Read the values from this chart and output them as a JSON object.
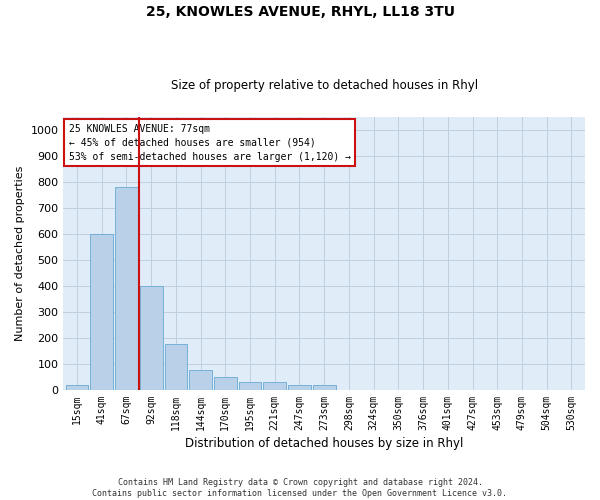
{
  "title1": "25, KNOWLES AVENUE, RHYL, LL18 3TU",
  "title2": "Size of property relative to detached houses in Rhyl",
  "xlabel": "Distribution of detached houses by size in Rhyl",
  "ylabel": "Number of detached properties",
  "footnote": "Contains HM Land Registry data © Crown copyright and database right 2024.\nContains public sector information licensed under the Open Government Licence v3.0.",
  "bar_labels": [
    "15sqm",
    "41sqm",
    "67sqm",
    "92sqm",
    "118sqm",
    "144sqm",
    "170sqm",
    "195sqm",
    "221sqm",
    "247sqm",
    "273sqm",
    "298sqm",
    "324sqm",
    "350sqm",
    "376sqm",
    "401sqm",
    "427sqm",
    "453sqm",
    "479sqm",
    "504sqm",
    "530sqm"
  ],
  "bar_values": [
    20,
    600,
    780,
    400,
    175,
    75,
    50,
    30,
    30,
    20,
    20,
    0,
    0,
    0,
    0,
    0,
    0,
    0,
    0,
    0,
    0
  ],
  "bar_color": "#b8d0e8",
  "bar_edge_color": "#6aaad4",
  "grid_color": "#c0d0e0",
  "background_color": "#e0ecf8",
  "vline_x": 2.5,
  "vline_color": "#cc1111",
  "annotation_text": "25 KNOWLES AVENUE: 77sqm\n← 45% of detached houses are smaller (954)\n53% of semi-detached houses are larger (1,120) →",
  "annotation_box_color": "#cc1111",
  "ylim": [
    0,
    1050
  ],
  "yticks": [
    0,
    100,
    200,
    300,
    400,
    500,
    600,
    700,
    800,
    900,
    1000
  ],
  "title1_fontsize": 10,
  "title2_fontsize": 8.5,
  "ylabel_fontsize": 8,
  "xlabel_fontsize": 8.5,
  "footnote_fontsize": 6,
  "tick_fontsize": 7,
  "annot_fontsize": 7
}
